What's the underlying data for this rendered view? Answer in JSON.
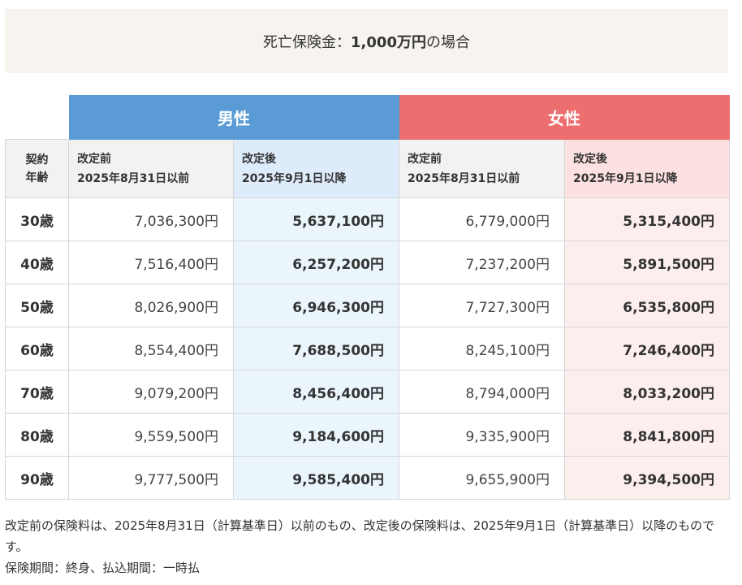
{
  "banner": {
    "prefix": "死亡保険金：",
    "amount": "1,000万円",
    "suffix": "の場合"
  },
  "groups": {
    "male": "男性",
    "female": "女性"
  },
  "headers": {
    "age_line1": "契約",
    "age_line2": "年齢",
    "before_label": "改定前",
    "before_date": "2025年8月31日以前",
    "after_label": "改定後",
    "after_date": "2025年9月1日以降"
  },
  "rows": [
    {
      "age": "30歳",
      "m_before": "7,036,300円",
      "m_after": "5,637,100円",
      "f_before": "6,779,000円",
      "f_after": "5,315,400円"
    },
    {
      "age": "40歳",
      "m_before": "7,516,400円",
      "m_after": "6,257,200円",
      "f_before": "7,237,200円",
      "f_after": "5,891,500円"
    },
    {
      "age": "50歳",
      "m_before": "8,026,900円",
      "m_after": "6,946,300円",
      "f_before": "7,727,300円",
      "f_after": "6,535,800円"
    },
    {
      "age": "60歳",
      "m_before": "8,554,400円",
      "m_after": "7,688,500円",
      "f_before": "8,245,100円",
      "f_after": "7,246,400円"
    },
    {
      "age": "70歳",
      "m_before": "9,079,200円",
      "m_after": "8,456,400円",
      "f_before": "8,794,000円",
      "f_after": "8,033,200円"
    },
    {
      "age": "80歳",
      "m_before": "9,559,500円",
      "m_after": "9,184,600円",
      "f_before": "9,335,900円",
      "f_after": "8,841,800円"
    },
    {
      "age": "90歳",
      "m_before": "9,777,500円",
      "m_after": "9,585,400円",
      "f_before": "9,655,900円",
      "f_after": "9,394,500円"
    }
  ],
  "notes": {
    "line1": "改定前の保険料は、2025年8月31日（計算基準日）以前のもの、改定後の保険料は、2025年9月1日（計算基準日）以降のものです。",
    "line2": "保険期間：終身、払込期間：一時払"
  },
  "colors": {
    "male": "#5b9bd5",
    "female": "#ec6e6e"
  }
}
